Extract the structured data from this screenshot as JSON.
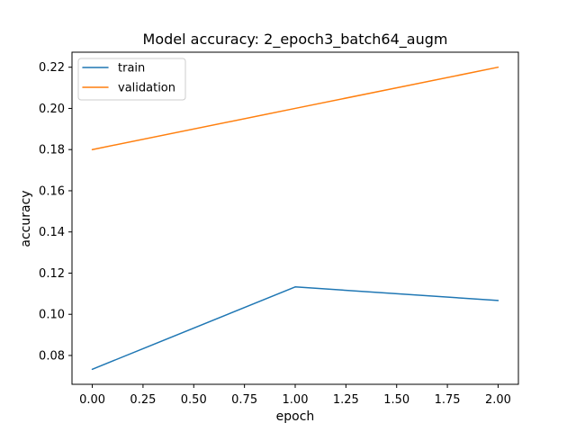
{
  "chart_data": {
    "type": "line",
    "title": "Model accuracy: 2_epoch3_batch64_augm",
    "xlabel": "epoch",
    "ylabel": "accuracy",
    "x": [
      0,
      1,
      2
    ],
    "series": [
      {
        "name": "train",
        "color": "#1f77b4",
        "values": [
          0.0733,
          0.1133,
          0.1067
        ]
      },
      {
        "name": "validation",
        "color": "#ff7f0e",
        "values": [
          0.18,
          0.2,
          0.22
        ]
      }
    ],
    "xlim": [
      -0.1,
      2.1
    ],
    "ylim": [
      0.066,
      0.2273
    ],
    "xticks": [
      0.0,
      0.25,
      0.5,
      0.75,
      1.0,
      1.25,
      1.5,
      1.75,
      2.0
    ],
    "xtick_labels": [
      "0.00",
      "0.25",
      "0.50",
      "0.75",
      "1.00",
      "1.25",
      "1.50",
      "1.75",
      "2.00"
    ],
    "yticks": [
      0.08,
      0.1,
      0.12,
      0.14,
      0.16,
      0.18,
      0.2,
      0.22
    ],
    "ytick_labels": [
      "0.08",
      "0.10",
      "0.12",
      "0.14",
      "0.16",
      "0.18",
      "0.20",
      "0.22"
    ],
    "grid": false,
    "legend_position": "top-left"
  }
}
